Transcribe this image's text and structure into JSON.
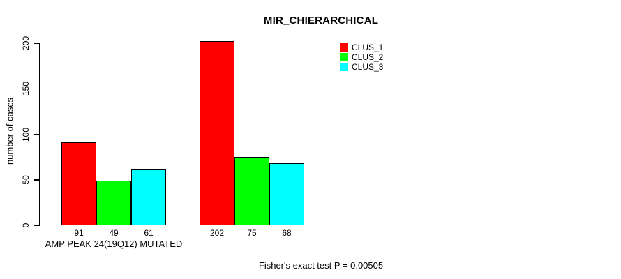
{
  "chart_data": {
    "type": "bar",
    "title": "MIR_CHIERARCHICAL",
    "ylabel": "number of cases",
    "xlabel": "",
    "ylim": [
      0,
      200
    ],
    "yticks": [
      0,
      50,
      100,
      150,
      200
    ],
    "grid": false,
    "legend_position": "top-right",
    "series": [
      {
        "name": "CLUS_1",
        "color": "#FF0000"
      },
      {
        "name": "CLUS_2",
        "color": "#00FF00"
      },
      {
        "name": "CLUS_3",
        "color": "#00FFFF"
      }
    ],
    "groups": [
      {
        "label": "AMP PEAK 24(19Q12) MUTATED",
        "values": [
          91,
          49,
          61
        ]
      },
      {
        "label": "",
        "values": [
          202,
          75,
          68
        ]
      }
    ],
    "annotation": "Fisher's exact test P = 0.00505"
  }
}
